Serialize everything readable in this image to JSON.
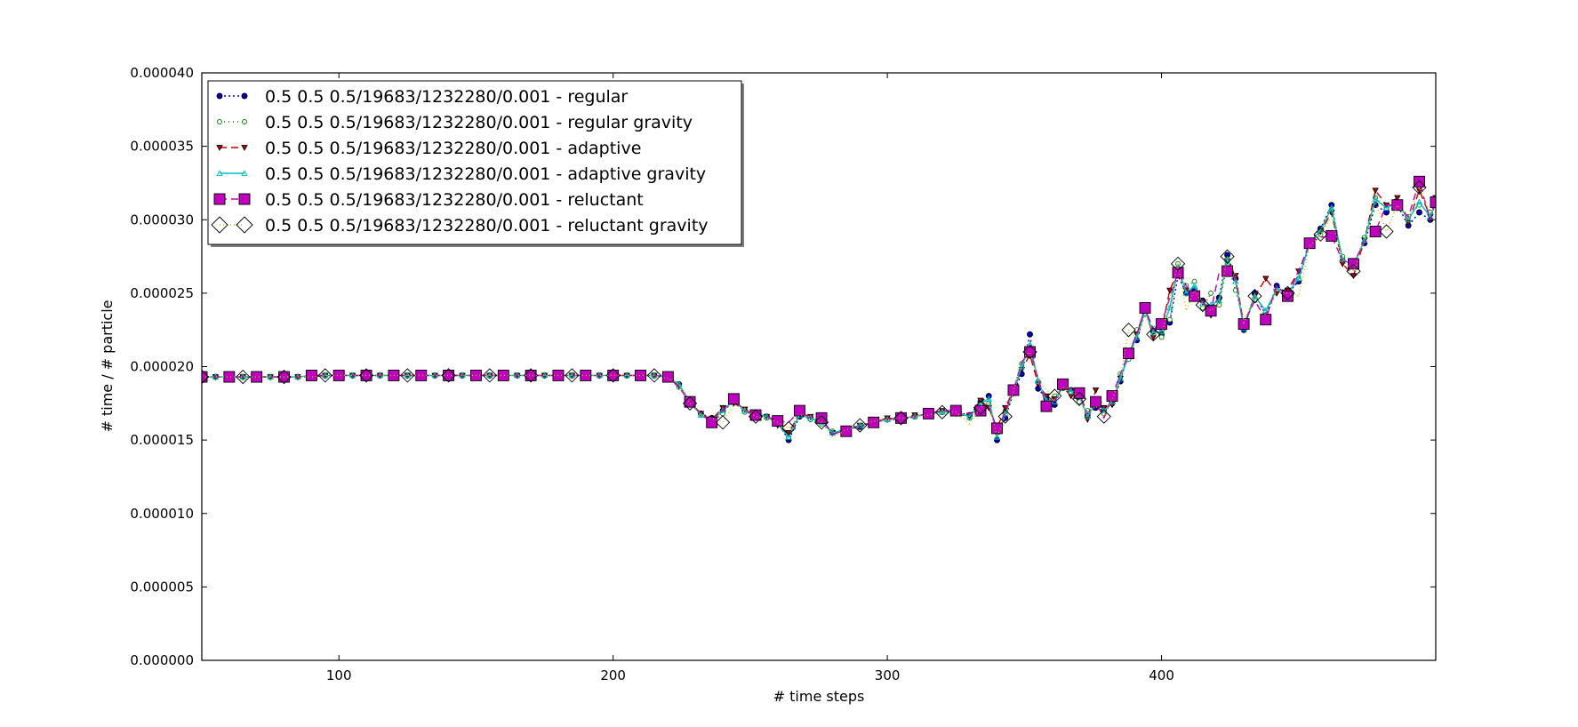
{
  "chart_data": {
    "type": "line",
    "title": "",
    "xlabel": "# time steps",
    "ylabel": "# time / # particle",
    "xlim": [
      50,
      500
    ],
    "ylim": [
      0,
      4e-05
    ],
    "xticks": [
      100,
      200,
      300,
      400
    ],
    "xtick_labels": [
      "100",
      "200",
      "300",
      "400"
    ],
    "yticks": [
      0,
      5e-06,
      1e-05,
      1.5e-05,
      2e-05,
      2.5e-05,
      3e-05,
      3.5e-05,
      4e-05
    ],
    "ytick_labels": [
      "0.000000",
      "0.000005",
      "0.000010",
      "0.000015",
      "0.000020",
      "0.000025",
      "0.000030",
      "0.000035",
      "0.000040"
    ],
    "grid": false,
    "legend_position": "top-left",
    "x": [
      50,
      55,
      60,
      65,
      70,
      75,
      80,
      85,
      90,
      95,
      100,
      105,
      110,
      115,
      120,
      125,
      130,
      135,
      140,
      145,
      150,
      155,
      160,
      165,
      170,
      175,
      180,
      185,
      190,
      195,
      200,
      205,
      210,
      215,
      220,
      224,
      228,
      232,
      236,
      240,
      244,
      248,
      252,
      256,
      260,
      264,
      268,
      272,
      276,
      280,
      285,
      290,
      295,
      300,
      305,
      310,
      315,
      320,
      325,
      330,
      334,
      337,
      340,
      343,
      346,
      349,
      352,
      355,
      358,
      361,
      364,
      367,
      370,
      373,
      376,
      379,
      382,
      385,
      388,
      391,
      394,
      397,
      400,
      403,
      406,
      409,
      412,
      415,
      418,
      421,
      424,
      427,
      430,
      434,
      438,
      442,
      446,
      450,
      454,
      458,
      462,
      466,
      470,
      474,
      478,
      482,
      486,
      490,
      494,
      498,
      500
    ],
    "series": [
      {
        "name": "0.5 0.5 0.5/19683/1232280/0.001 - regular",
        "color": "#0000bf",
        "dash": "2,3",
        "marker": "circle",
        "mfill": "#0000bf",
        "msize": 6,
        "mstep": 1,
        "values": [
          1.93e-05,
          1.93e-05,
          1.93e-05,
          1.93e-05,
          1.93e-05,
          1.93e-05,
          1.93e-05,
          1.93e-05,
          1.94e-05,
          1.94e-05,
          1.94e-05,
          1.94e-05,
          1.94e-05,
          1.94e-05,
          1.94e-05,
          1.94e-05,
          1.94e-05,
          1.94e-05,
          1.94e-05,
          1.94e-05,
          1.94e-05,
          1.94e-05,
          1.94e-05,
          1.94e-05,
          1.94e-05,
          1.94e-05,
          1.94e-05,
          1.94e-05,
          1.94e-05,
          1.94e-05,
          1.94e-05,
          1.94e-05,
          1.94e-05,
          1.94e-05,
          1.93e-05,
          1.88e-05,
          1.76e-05,
          1.68e-05,
          1.65e-05,
          1.7e-05,
          1.76e-05,
          1.7e-05,
          1.68e-05,
          1.66e-05,
          1.62e-05,
          1.5e-05,
          1.66e-05,
          1.65e-05,
          1.62e-05,
          1.55e-05,
          1.57e-05,
          1.59e-05,
          1.62e-05,
          1.64e-05,
          1.64e-05,
          1.66e-05,
          1.68e-05,
          1.69e-05,
          1.69e-05,
          1.67e-05,
          1.76e-05,
          1.8e-05,
          1.5e-05,
          1.65e-05,
          1.82e-05,
          1.95e-05,
          2.22e-05,
          1.85e-05,
          1.78e-05,
          1.74e-05,
          1.88e-05,
          1.84e-05,
          1.78e-05,
          1.67e-05,
          1.72e-05,
          1.7e-05,
          1.75e-05,
          1.9e-05,
          2.1e-05,
          2.18e-05,
          2.38e-05,
          2.24e-05,
          2.22e-05,
          2.3e-05,
          2.62e-05,
          2.5e-05,
          2.52e-05,
          2.45e-05,
          2.4e-05,
          2.47e-05,
          2.76e-05,
          2.6e-05,
          2.25e-05,
          2.5e-05,
          2.35e-05,
          2.55e-05,
          2.5e-05,
          2.58e-05,
          2.85e-05,
          2.94e-05,
          3.1e-05,
          2.72e-05,
          2.7e-05,
          2.84e-05,
          3.1e-05,
          3.05e-05,
          3.1e-05,
          2.96e-05,
          3.05e-05,
          3e-05,
          3.12e-05
        ]
      },
      {
        "name": "0.5 0.5 0.5/19683/1232280/0.001 - regular gravity",
        "color": "#007f00",
        "dash": "1,4",
        "marker": "circle",
        "mfill": "#ffffff",
        "msize": 5,
        "mstep": 1,
        "values": [
          1.93e-05,
          1.93e-05,
          1.93e-05,
          1.93e-05,
          1.93e-05,
          1.93e-05,
          1.93e-05,
          1.93e-05,
          1.93e-05,
          1.94e-05,
          1.94e-05,
          1.94e-05,
          1.94e-05,
          1.94e-05,
          1.94e-05,
          1.94e-05,
          1.94e-05,
          1.94e-05,
          1.94e-05,
          1.94e-05,
          1.94e-05,
          1.94e-05,
          1.94e-05,
          1.94e-05,
          1.94e-05,
          1.94e-05,
          1.94e-05,
          1.94e-05,
          1.94e-05,
          1.94e-05,
          1.94e-05,
          1.94e-05,
          1.94e-05,
          1.94e-05,
          1.92e-05,
          1.86e-05,
          1.75e-05,
          1.67e-05,
          1.62e-05,
          1.68e-05,
          1.78e-05,
          1.69e-05,
          1.67e-05,
          1.65e-05,
          1.63e-05,
          1.52e-05,
          1.7e-05,
          1.64e-05,
          1.61e-05,
          1.56e-05,
          1.57e-05,
          1.6e-05,
          1.63e-05,
          1.64e-05,
          1.65e-05,
          1.66e-05,
          1.68e-05,
          1.69e-05,
          1.7e-05,
          1.65e-05,
          1.74e-05,
          1.75e-05,
          1.55e-05,
          1.7e-05,
          1.85e-05,
          2.02e-05,
          2.12e-05,
          1.9e-05,
          1.75e-05,
          1.8e-05,
          1.85e-05,
          1.82e-05,
          1.76e-05,
          1.7e-05,
          1.74e-05,
          1.68e-05,
          1.78e-05,
          1.95e-05,
          2.05e-05,
          2.25e-05,
          2.36e-05,
          2.26e-05,
          2.2e-05,
          2.32e-05,
          2.7e-05,
          2.55e-05,
          2.58e-05,
          2.4e-05,
          2.5e-05,
          2.42e-05,
          2.7e-05,
          2.52e-05,
          2.3e-05,
          2.45e-05,
          2.33e-05,
          2.52e-05,
          2.48e-05,
          2.6e-05,
          2.82e-05,
          2.9e-05,
          3.06e-05,
          2.75e-05,
          2.68e-05,
          2.88e-05,
          3.15e-05,
          3.08e-05,
          3.12e-05,
          3.02e-05,
          3.1e-05,
          3.05e-05,
          3.1e-05
        ]
      },
      {
        "name": "0.5 0.5 0.5/19683/1232280/0.001 - adaptive",
        "color": "#bf0000",
        "dash": "8,5",
        "marker": "triangle-down",
        "mfill": "#bf0000",
        "msize": 6,
        "mstep": 1,
        "values": [
          1.93e-05,
          1.93e-05,
          1.93e-05,
          1.93e-05,
          1.93e-05,
          1.93e-05,
          1.93e-05,
          1.93e-05,
          1.93e-05,
          1.94e-05,
          1.94e-05,
          1.94e-05,
          1.94e-05,
          1.94e-05,
          1.94e-05,
          1.94e-05,
          1.94e-05,
          1.94e-05,
          1.94e-05,
          1.94e-05,
          1.94e-05,
          1.94e-05,
          1.94e-05,
          1.94e-05,
          1.94e-05,
          1.94e-05,
          1.94e-05,
          1.94e-05,
          1.94e-05,
          1.94e-05,
          1.94e-05,
          1.94e-05,
          1.94e-05,
          1.94e-05,
          1.93e-05,
          1.87e-05,
          1.76e-05,
          1.68e-05,
          1.64e-05,
          1.72e-05,
          1.75e-05,
          1.71e-05,
          1.67e-05,
          1.66e-05,
          1.6e-05,
          1.55e-05,
          1.68e-05,
          1.66e-05,
          1.63e-05,
          1.55e-05,
          1.56e-05,
          1.6e-05,
          1.62e-05,
          1.65e-05,
          1.64e-05,
          1.67e-05,
          1.68e-05,
          1.7e-05,
          1.68e-05,
          1.66e-05,
          1.77e-05,
          1.72e-05,
          1.58e-05,
          1.72e-05,
          1.84e-05,
          1.98e-05,
          2.08e-05,
          1.88e-05,
          1.8e-05,
          1.78e-05,
          1.86e-05,
          1.8e-05,
          1.82e-05,
          1.64e-05,
          1.84e-05,
          1.72e-05,
          1.74e-05,
          1.92e-05,
          2.08e-05,
          2.22e-05,
          2.4e-05,
          2.2e-05,
          2.25e-05,
          2.52e-05,
          2.65e-05,
          2.52e-05,
          2.5e-05,
          2.44e-05,
          2.35e-05,
          2.45e-05,
          2.72e-05,
          2.62e-05,
          2.28e-05,
          2.48e-05,
          2.6e-05,
          2.5e-05,
          2.52e-05,
          2.65e-05,
          2.83e-05,
          2.92e-05,
          3.05e-05,
          2.7e-05,
          2.62e-05,
          2.86e-05,
          3.2e-05,
          3.1e-05,
          3.15e-05,
          2.98e-05,
          3.2e-05,
          3.02e-05,
          3.15e-05
        ]
      },
      {
        "name": "0.5 0.5 0.5/19683/1232280/0.001 - adaptive gravity",
        "color": "#00bfbf",
        "dash": "",
        "marker": "triangle-up",
        "mfill": "none",
        "msize": 6,
        "mstep": 1,
        "values": [
          1.93e-05,
          1.93e-05,
          1.93e-05,
          1.93e-05,
          1.93e-05,
          1.93e-05,
          1.93e-05,
          1.93e-05,
          1.94e-05,
          1.94e-05,
          1.94e-05,
          1.94e-05,
          1.94e-05,
          1.94e-05,
          1.94e-05,
          1.94e-05,
          1.94e-05,
          1.94e-05,
          1.94e-05,
          1.94e-05,
          1.94e-05,
          1.94e-05,
          1.94e-05,
          1.94e-05,
          1.94e-05,
          1.94e-05,
          1.94e-05,
          1.94e-05,
          1.94e-05,
          1.94e-05,
          1.94e-05,
          1.94e-05,
          1.94e-05,
          1.94e-05,
          1.93e-05,
          1.88e-05,
          1.76e-05,
          1.67e-05,
          1.63e-05,
          1.7e-05,
          1.77e-05,
          1.7e-05,
          1.68e-05,
          1.66e-05,
          1.61e-05,
          1.52e-05,
          1.67e-05,
          1.65e-05,
          1.62e-05,
          1.55e-05,
          1.57e-05,
          1.6e-05,
          1.62e-05,
          1.64e-05,
          1.65e-05,
          1.66e-05,
          1.68e-05,
          1.69e-05,
          1.69e-05,
          1.66e-05,
          1.75e-05,
          1.78e-05,
          1.52e-05,
          1.68e-05,
          1.83e-05,
          2e-05,
          2.15e-05,
          1.9e-05,
          1.77e-05,
          1.76e-05,
          1.87e-05,
          1.83e-05,
          1.8e-05,
          1.66e-05,
          1.76e-05,
          1.7e-05,
          1.76e-05,
          1.92e-05,
          2.08e-05,
          2.2e-05,
          2.38e-05,
          2.23e-05,
          2.24e-05,
          2.4e-05,
          2.68e-05,
          2.5e-05,
          2.55e-05,
          2.43e-05,
          2.42e-05,
          2.45e-05,
          2.73e-05,
          2.58e-05,
          2.26e-05,
          2.48e-05,
          2.38e-05,
          2.53e-05,
          2.5e-05,
          2.6e-05,
          2.84e-05,
          2.93e-05,
          3.08e-05,
          2.73e-05,
          2.69e-05,
          2.86e-05,
          3.14e-05,
          3.08e-05,
          3.12e-05,
          3e-05,
          3.12e-05,
          3.02e-05,
          3.12e-05
        ]
      },
      {
        "name": "0.5 0.5 0.5/19683/1232280/0.001 - reluctant",
        "color": "#bf00bf",
        "dash": "8,5",
        "marker": "square",
        "mfill": "#bf00bf",
        "msize": 12,
        "mstep": 2,
        "values": [
          1.93e-05,
          1.93e-05,
          1.93e-05,
          1.93e-05,
          1.93e-05,
          1.93e-05,
          1.93e-05,
          1.93e-05,
          1.94e-05,
          1.94e-05,
          1.94e-05,
          1.94e-05,
          1.94e-05,
          1.94e-05,
          1.94e-05,
          1.94e-05,
          1.94e-05,
          1.94e-05,
          1.94e-05,
          1.94e-05,
          1.94e-05,
          1.94e-05,
          1.94e-05,
          1.94e-05,
          1.94e-05,
          1.94e-05,
          1.94e-05,
          1.94e-05,
          1.94e-05,
          1.94e-05,
          1.94e-05,
          1.94e-05,
          1.94e-05,
          1.94e-05,
          1.93e-05,
          1.86e-05,
          1.76e-05,
          1.68e-05,
          1.62e-05,
          1.7e-05,
          1.78e-05,
          1.7e-05,
          1.67e-05,
          1.66e-05,
          1.63e-05,
          1.62e-05,
          1.7e-05,
          1.65e-05,
          1.65e-05,
          1.54e-05,
          1.56e-05,
          1.6e-05,
          1.62e-05,
          1.64e-05,
          1.65e-05,
          1.66e-05,
          1.68e-05,
          1.7e-05,
          1.7e-05,
          1.68e-05,
          1.7e-05,
          1.73e-05,
          1.58e-05,
          1.68e-05,
          1.84e-05,
          2.03e-05,
          2.1e-05,
          1.92e-05,
          1.73e-05,
          1.76e-05,
          1.88e-05,
          1.84e-05,
          1.82e-05,
          1.68e-05,
          1.76e-05,
          1.65e-05,
          1.8e-05,
          1.95e-05,
          2.09e-05,
          2.22e-05,
          2.4e-05,
          2.25e-05,
          2.29e-05,
          2.47e-05,
          2.64e-05,
          2.55e-05,
          2.48e-05,
          2.44e-05,
          2.38e-05,
          2.64e-05,
          2.65e-05,
          2.6e-05,
          2.29e-05,
          2.45e-05,
          2.32e-05,
          2.55e-05,
          2.48e-05,
          2.65e-05,
          2.84e-05,
          2.88e-05,
          2.89e-05,
          2.72e-05,
          2.7e-05,
          2.85e-05,
          2.92e-05,
          3.1e-05,
          3.1e-05,
          3.02e-05,
          3.26e-05,
          3e-05,
          3.12e-05
        ]
      },
      {
        "name": "0.5 0.5 0.5/19683/1232280/0.001 - reluctant gravity",
        "color": "#bfbf00",
        "dash": "1,3",
        "marker": "diamond",
        "mfill": "none",
        "msize": 15,
        "mstep": 3,
        "values": [
          1.93e-05,
          1.93e-05,
          1.93e-05,
          1.93e-05,
          1.93e-05,
          1.93e-05,
          1.93e-05,
          1.93e-05,
          1.93e-05,
          1.94e-05,
          1.94e-05,
          1.94e-05,
          1.94e-05,
          1.94e-05,
          1.94e-05,
          1.94e-05,
          1.94e-05,
          1.94e-05,
          1.94e-05,
          1.94e-05,
          1.94e-05,
          1.94e-05,
          1.94e-05,
          1.94e-05,
          1.94e-05,
          1.94e-05,
          1.94e-05,
          1.94e-05,
          1.94e-05,
          1.94e-05,
          1.94e-05,
          1.94e-05,
          1.94e-05,
          1.94e-05,
          1.92e-05,
          1.88e-05,
          1.75e-05,
          1.67e-05,
          1.65e-05,
          1.62e-05,
          1.74e-05,
          1.71e-05,
          1.66e-05,
          1.65e-05,
          1.62e-05,
          1.58e-05,
          1.67e-05,
          1.66e-05,
          1.62e-05,
          1.52e-05,
          1.57e-05,
          1.6e-05,
          1.63e-05,
          1.64e-05,
          1.65e-05,
          1.66e-05,
          1.67e-05,
          1.69e-05,
          1.69e-05,
          1.61e-05,
          1.72e-05,
          1.76e-05,
          1.52e-05,
          1.66e-05,
          1.83e-05,
          2.05e-05,
          2.1e-05,
          1.92e-05,
          1.84e-05,
          1.8e-05,
          1.86e-05,
          1.85e-05,
          1.78e-05,
          1.68e-05,
          1.73e-05,
          1.66e-05,
          1.78e-05,
          1.92e-05,
          2.25e-05,
          2.2e-05,
          2.35e-05,
          2.22e-05,
          2.22e-05,
          2.45e-05,
          2.7e-05,
          2.38e-05,
          2.52e-05,
          2.42e-05,
          2.38e-05,
          2.43e-05,
          2.75e-05,
          2.62e-05,
          2.3e-05,
          2.48e-05,
          2.35e-05,
          2.52e-05,
          2.5e-05,
          2.48e-05,
          2.82e-05,
          2.9e-05,
          3.02e-05,
          2.72e-05,
          2.65e-05,
          2.84e-05,
          3.12e-05,
          2.92e-05,
          3.1e-05,
          3e-05,
          3.22e-05,
          3.05e-05,
          3.08e-05
        ]
      }
    ]
  }
}
